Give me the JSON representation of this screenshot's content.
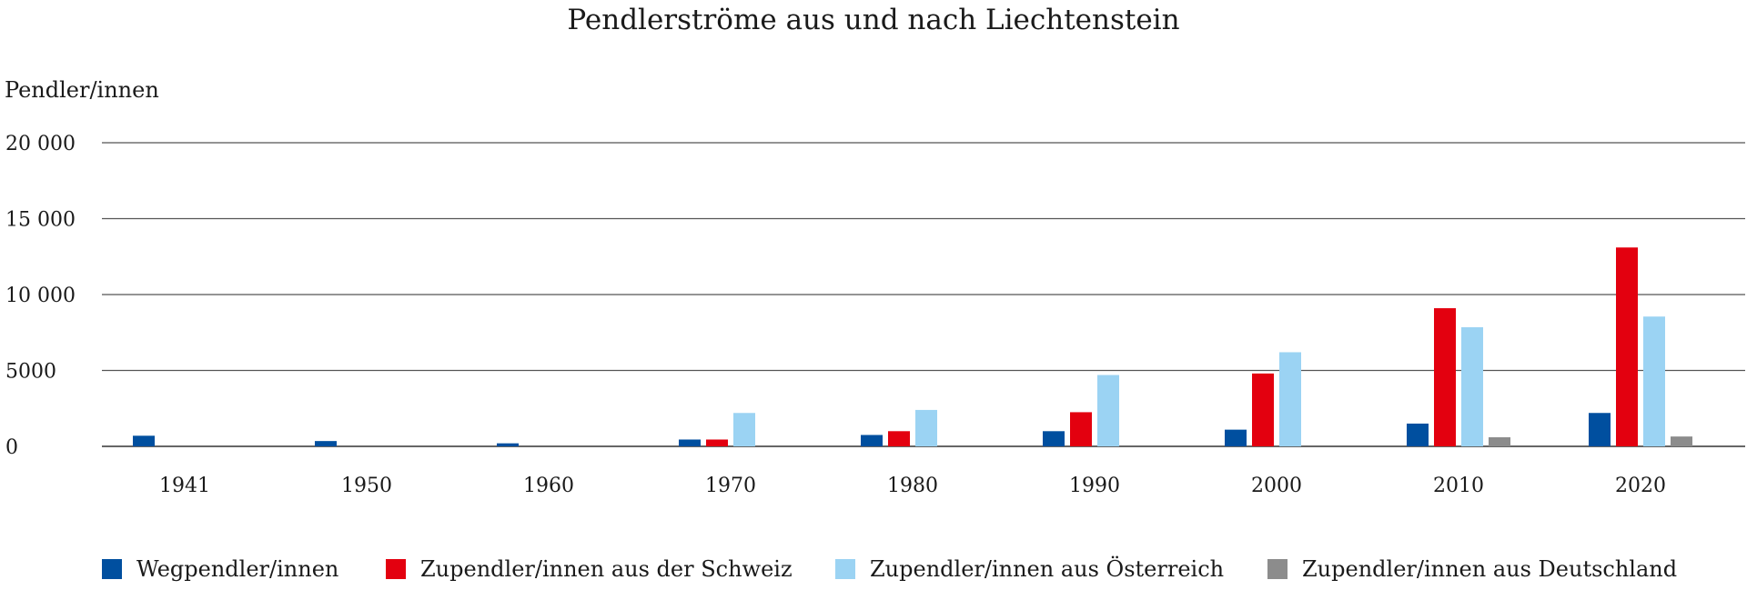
{
  "chart_data": {
    "type": "bar",
    "title": "Pendlerströme aus und nach Liechtenstein",
    "xlabel": "",
    "ylabel": "Pendler/innen",
    "ylim": [
      0,
      20000
    ],
    "yticks": [
      0,
      5000,
      10000,
      15000,
      20000
    ],
    "ytick_labels": [
      "0",
      "5000",
      "10 000",
      "15 000",
      "20 000"
    ],
    "grid": true,
    "legend_position": "bottom",
    "categories": [
      "1941",
      "1950",
      "1960",
      "1970",
      "1980",
      "1990",
      "2000",
      "2010",
      "2020"
    ],
    "series": [
      {
        "name": "Wegpendler/innen",
        "color": "#004f9f",
        "values": [
          700,
          350,
          200,
          450,
          750,
          1000,
          1100,
          1500,
          2200
        ]
      },
      {
        "name": "Zupendler/innen aus der Schweiz",
        "color": "#e3000f",
        "values": [
          null,
          null,
          null,
          450,
          1000,
          2250,
          4800,
          9100,
          13100
        ]
      },
      {
        "name": "Zupendler/innen aus Österreich",
        "color": "#9bd3f3",
        "values": [
          null,
          null,
          null,
          2200,
          2400,
          4700,
          6200,
          7850,
          8550
        ]
      },
      {
        "name": "Zupendler/innen aus Deutschland",
        "color": "#8c8c8c",
        "values": [
          null,
          null,
          null,
          null,
          null,
          null,
          null,
          600,
          650
        ]
      }
    ]
  }
}
